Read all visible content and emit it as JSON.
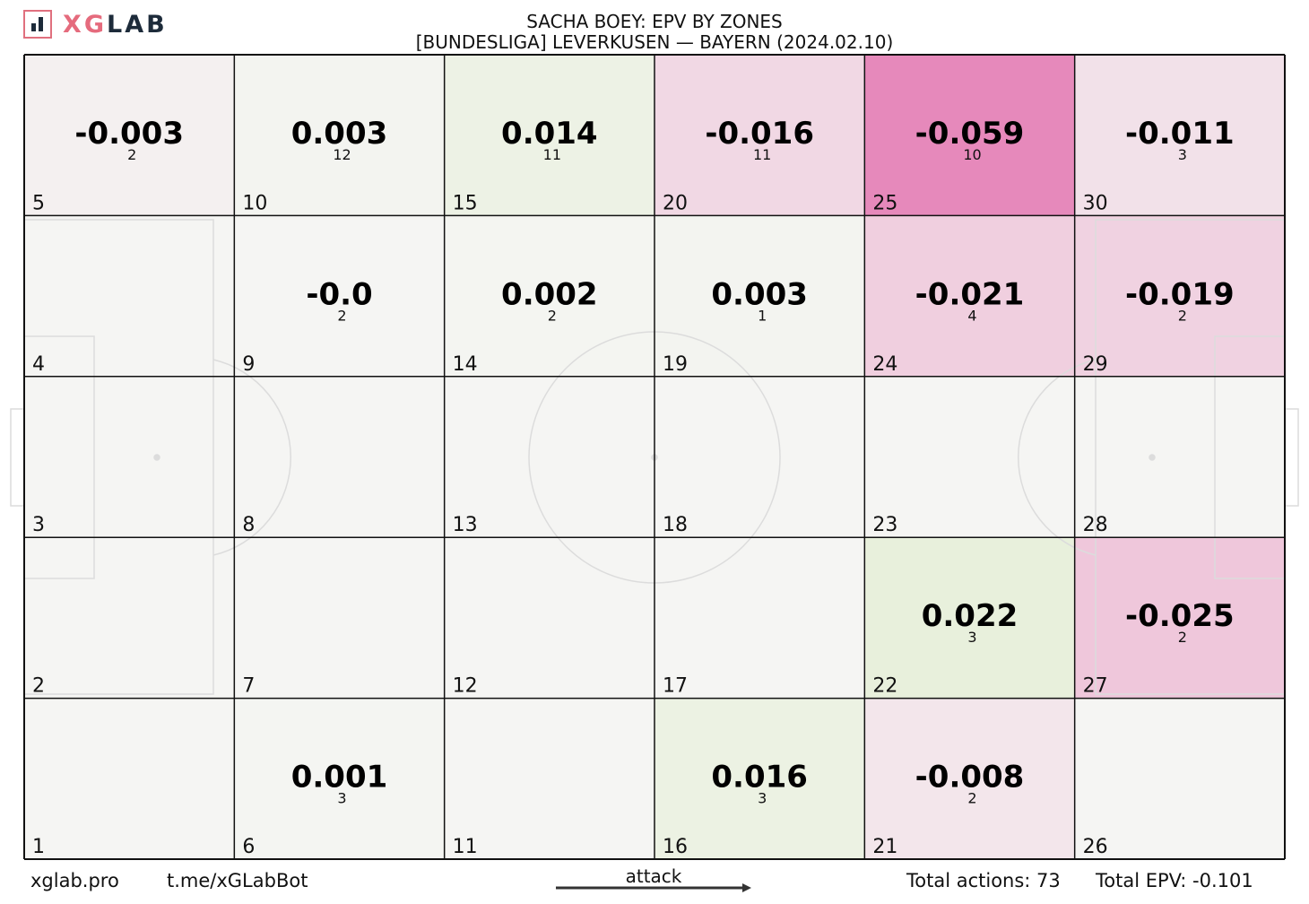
{
  "logo": {
    "x": "X",
    "g": "G",
    "rest": "LAB"
  },
  "header": {
    "title": "SACHA BOEY: EPV BY ZONES",
    "subtitle": "[BUNDESLIGA] LEVERKUSEN —  BAYERN (2024.02.10)"
  },
  "footer": {
    "site": "xglab.pro",
    "bot": "t.me/xGLabBot",
    "attack": "attack",
    "total_actions": "Total actions: 73",
    "total_epv": "Total EPV: -0.101"
  },
  "colors": {
    "negative": "#d92e8b",
    "positive": "#a6d96a",
    "neutral": "#f5f5f3"
  },
  "chart_data": {
    "type": "heatmap",
    "title": "SACHA BOEY: EPV BY ZONES",
    "grid": {
      "columns": 6,
      "rows": 5
    },
    "zones": [
      {
        "zone": 1,
        "epv": null,
        "actions": null
      },
      {
        "zone": 2,
        "epv": null,
        "actions": null
      },
      {
        "zone": 3,
        "epv": null,
        "actions": null
      },
      {
        "zone": 4,
        "epv": null,
        "actions": null
      },
      {
        "zone": 5,
        "epv": -0.003,
        "label": "-0.003",
        "actions": 2
      },
      {
        "zone": 6,
        "epv": 0.001,
        "label": "0.001",
        "actions": 3
      },
      {
        "zone": 7,
        "epv": null,
        "actions": null
      },
      {
        "zone": 8,
        "epv": null,
        "actions": null
      },
      {
        "zone": 9,
        "epv": -0.0,
        "label": "-0.0",
        "actions": 2
      },
      {
        "zone": 10,
        "epv": 0.003,
        "label": "0.003",
        "actions": 12
      },
      {
        "zone": 11,
        "epv": null,
        "actions": null
      },
      {
        "zone": 12,
        "epv": null,
        "actions": null
      },
      {
        "zone": 13,
        "epv": null,
        "actions": null
      },
      {
        "zone": 14,
        "epv": 0.002,
        "label": "0.002",
        "actions": 2
      },
      {
        "zone": 15,
        "epv": 0.014,
        "label": "0.014",
        "actions": 11
      },
      {
        "zone": 16,
        "epv": 0.016,
        "label": "0.016",
        "actions": 3
      },
      {
        "zone": 17,
        "epv": null,
        "actions": null
      },
      {
        "zone": 18,
        "epv": null,
        "actions": null
      },
      {
        "zone": 19,
        "epv": 0.003,
        "label": "0.003",
        "actions": 1
      },
      {
        "zone": 20,
        "epv": -0.016,
        "label": "-0.016",
        "actions": 11
      },
      {
        "zone": 21,
        "epv": -0.008,
        "label": "-0.008",
        "actions": 2
      },
      {
        "zone": 22,
        "epv": 0.022,
        "label": "0.022",
        "actions": 3
      },
      {
        "zone": 23,
        "epv": null,
        "actions": null
      },
      {
        "zone": 24,
        "epv": -0.021,
        "label": "-0.021",
        "actions": 4
      },
      {
        "zone": 25,
        "epv": -0.059,
        "label": "-0.059",
        "actions": 10
      },
      {
        "zone": 26,
        "epv": null,
        "actions": null
      },
      {
        "zone": 27,
        "epv": -0.025,
        "label": "-0.025",
        "actions": 2
      },
      {
        "zone": 28,
        "epv": null,
        "actions": null
      },
      {
        "zone": 29,
        "epv": -0.019,
        "label": "-0.019",
        "actions": 2
      },
      {
        "zone": 30,
        "epv": -0.011,
        "label": "-0.011",
        "actions": 3
      }
    ]
  }
}
